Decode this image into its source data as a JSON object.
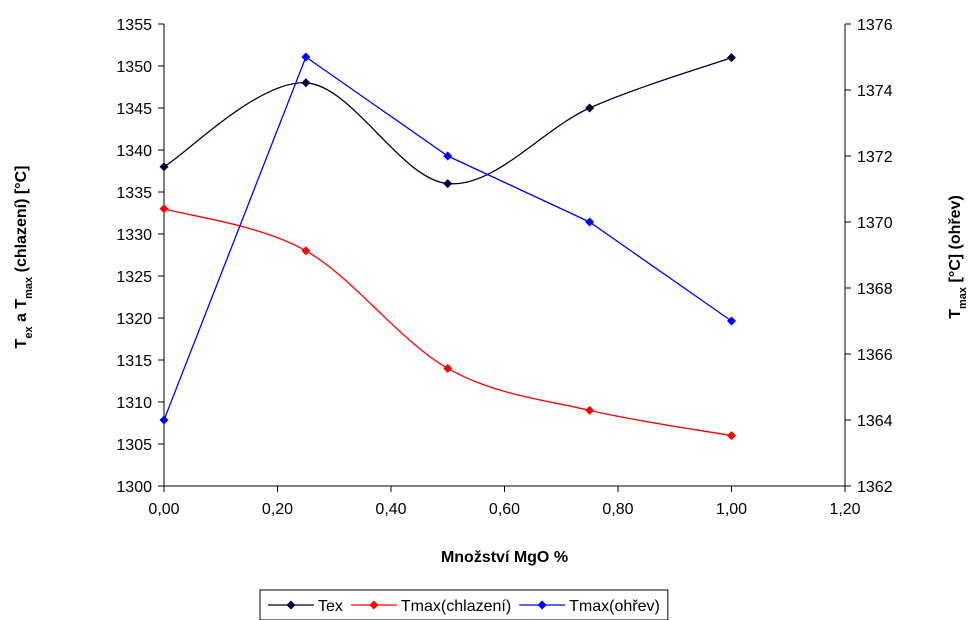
{
  "chart_data": {
    "type": "line",
    "x": [
      0.0,
      0.25,
      0.5,
      0.75,
      1.0
    ],
    "xlim": [
      0,
      1.2
    ],
    "x_ticks": [
      0.0,
      0.2,
      0.4,
      0.6,
      0.8,
      1.0,
      1.2
    ],
    "x_tick_labels": [
      "0,00",
      "0,20",
      "0,40",
      "0,60",
      "0,80",
      "1,00",
      "1,20"
    ],
    "xlabel": "Množství MgO %",
    "y_left": {
      "label_parts": [
        {
          "text": "T",
          "sub": false
        },
        {
          "text": "ex",
          "sub": true
        },
        {
          "text": " a T",
          "sub": false
        },
        {
          "text": "max",
          "sub": true
        },
        {
          "text": " (chlazení) [°C]",
          "sub": false
        }
      ],
      "lim": [
        1300,
        1355
      ],
      "ticks": [
        1300,
        1305,
        1310,
        1315,
        1320,
        1325,
        1330,
        1335,
        1340,
        1345,
        1350,
        1355
      ]
    },
    "y_right": {
      "label_parts": [
        {
          "text": "T",
          "sub": false
        },
        {
          "text": "max",
          "sub": true
        },
        {
          "text": " [°C] (ohřev)",
          "sub": false
        }
      ],
      "lim": [
        1362,
        1376
      ],
      "ticks": [
        1362,
        1364,
        1366,
        1368,
        1370,
        1372,
        1374,
        1376
      ]
    },
    "series": [
      {
        "name": "Tex",
        "axis": "left",
        "color": "#000033",
        "smooth": true,
        "values": [
          1338,
          1348,
          1336,
          1345,
          1351
        ]
      },
      {
        "name": "Tmax(chlazení)",
        "axis": "left",
        "color": "#ff0000",
        "smooth": true,
        "values": [
          1333,
          1328,
          1314,
          1309,
          1306
        ]
      },
      {
        "name": "Tmax(ohřev)",
        "axis": "right",
        "color": "#0000ff",
        "smooth": false,
        "values": [
          1364,
          1375,
          1372,
          1370,
          1367
        ]
      }
    ],
    "legend_position": "bottom",
    "grid": false
  }
}
